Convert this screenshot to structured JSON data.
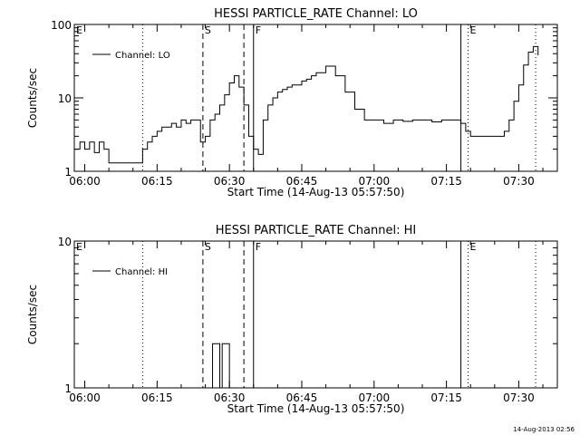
{
  "footer_timestamp": "14-Aug-2013 02:56",
  "chart_data": [
    {
      "type": "line",
      "title": "HESSI PARTICLE_RATE Channel: LO",
      "xlabel": "Start Time (14-Aug-13 05:57:50)",
      "ylabel": "Counts/sec",
      "yscale": "log",
      "xlim": [
        "05:57:50",
        "07:38:00"
      ],
      "ylim": [
        1,
        100
      ],
      "x_ticks": [
        "06:00",
        "06:15",
        "06:30",
        "06:45",
        "07:00",
        "07:15",
        "07:30"
      ],
      "y_ticks": [
        "1",
        "10",
        "100"
      ],
      "legend": {
        "position": "top-left",
        "label": "Channel: LO"
      },
      "series": [
        {
          "name": "Channel: LO",
          "x": [
            "05:57:50",
            "05:59:00",
            "06:00:00",
            "06:01:00",
            "06:02:00",
            "06:03:00",
            "06:04:00",
            "06:05:00",
            "06:06:00",
            "06:07:00",
            "06:08:00",
            "06:09:00",
            "06:10:00",
            "06:11:00",
            "06:12:00",
            "06:13:00",
            "06:14:00",
            "06:15:00",
            "06:16:00",
            "06:17:00",
            "06:18:00",
            "06:19:00",
            "06:20:00",
            "06:21:00",
            "06:22:00",
            "06:23:00",
            "06:24:00",
            "06:25:00",
            "06:26:00",
            "06:27:00",
            "06:28:00",
            "06:29:00",
            "06:30:00",
            "06:31:00",
            "06:32:00",
            "06:33:00",
            "06:34:00",
            "06:35:00",
            "06:36:00",
            "06:37:00",
            "06:38:00",
            "06:39:00",
            "06:40:00",
            "06:41:00",
            "06:42:00",
            "06:43:00",
            "06:44:00",
            "06:45:00",
            "06:46:00",
            "06:47:00",
            "06:48:00",
            "06:50:00",
            "06:52:00",
            "06:54:00",
            "06:56:00",
            "06:58:00",
            "07:00:00",
            "07:02:00",
            "07:04:00",
            "07:06:00",
            "07:08:00",
            "07:10:00",
            "07:12:00",
            "07:14:00",
            "07:16:00",
            "07:18:00",
            "07:19:00",
            "07:20:00",
            "07:21:00",
            "07:22:00",
            "07:23:00",
            "07:24:00",
            "07:25:00",
            "07:26:00",
            "07:27:00",
            "07:28:00",
            "07:29:00",
            "07:30:00",
            "07:31:00",
            "07:32:00",
            "07:33:00",
            "07:34:00"
          ],
          "values": [
            2,
            2.5,
            2,
            2.5,
            1.8,
            2.5,
            2,
            1.3,
            1.3,
            1.3,
            1.3,
            1.3,
            1.3,
            1.3,
            2,
            2.5,
            3,
            3.5,
            4,
            4,
            4.5,
            4,
            5,
            4.5,
            5,
            5,
            2.5,
            3,
            5,
            6,
            8,
            11,
            16,
            20,
            14,
            8,
            3,
            2,
            1.7,
            5,
            8,
            10,
            12,
            13,
            14,
            15,
            15,
            17,
            18,
            20,
            22,
            27,
            20,
            12,
            7,
            5,
            5,
            4.5,
            5,
            4.8,
            5,
            5,
            4.7,
            5,
            5,
            4.5,
            3.5,
            3,
            3,
            3,
            3,
            3,
            3,
            3,
            3.5,
            5,
            9,
            15,
            28,
            42,
            50,
            38
          ]
        }
      ],
      "annotations": [
        {
          "label": "E",
          "time": "05:57:50",
          "line": "none"
        },
        {
          "label": "",
          "time": "06:12:00",
          "line": "dotted"
        },
        {
          "label": "S",
          "time": "06:24:30",
          "line": "dashed"
        },
        {
          "label": "",
          "time": "06:33:00",
          "line": "dashed"
        },
        {
          "label": "F",
          "time": "06:35:00",
          "line": "solid"
        },
        {
          "label": "",
          "time": "07:18:00",
          "line": "solid"
        },
        {
          "label": "E",
          "time": "07:19:30",
          "line": "dotted"
        },
        {
          "label": "",
          "time": "07:33:30",
          "line": "dotted"
        }
      ]
    },
    {
      "type": "line",
      "title": "HESSI PARTICLE_RATE Channel: HI",
      "xlabel": "Start Time (14-Aug-13 05:57:50)",
      "ylabel": "Counts/sec",
      "yscale": "log",
      "xlim": [
        "05:57:50",
        "07:38:00"
      ],
      "ylim": [
        1,
        10
      ],
      "x_ticks": [
        "06:00",
        "06:15",
        "06:30",
        "06:45",
        "07:00",
        "07:15",
        "07:30"
      ],
      "y_ticks": [
        "1",
        "10"
      ],
      "legend": {
        "position": "top-left",
        "label": "Channel: HI"
      },
      "series": [
        {
          "name": "Channel: HI",
          "x": [
            "06:25:00",
            "06:26:00",
            "06:26:30",
            "06:27:00",
            "06:28:00",
            "06:28:30",
            "06:29:00",
            "06:30:00",
            "06:30:30"
          ],
          "values": [
            1,
            1,
            2,
            2,
            1,
            2,
            2,
            1,
            1
          ]
        }
      ],
      "annotations": [
        {
          "label": "E",
          "time": "05:57:50",
          "line": "none"
        },
        {
          "label": "",
          "time": "06:12:00",
          "line": "dotted"
        },
        {
          "label": "S",
          "time": "06:24:30",
          "line": "dashed"
        },
        {
          "label": "",
          "time": "06:33:00",
          "line": "dashed"
        },
        {
          "label": "F",
          "time": "06:35:00",
          "line": "solid"
        },
        {
          "label": "",
          "time": "07:18:00",
          "line": "solid"
        },
        {
          "label": "E",
          "time": "07:19:30",
          "line": "dotted"
        },
        {
          "label": "",
          "time": "07:33:30",
          "line": "dotted"
        }
      ]
    }
  ]
}
